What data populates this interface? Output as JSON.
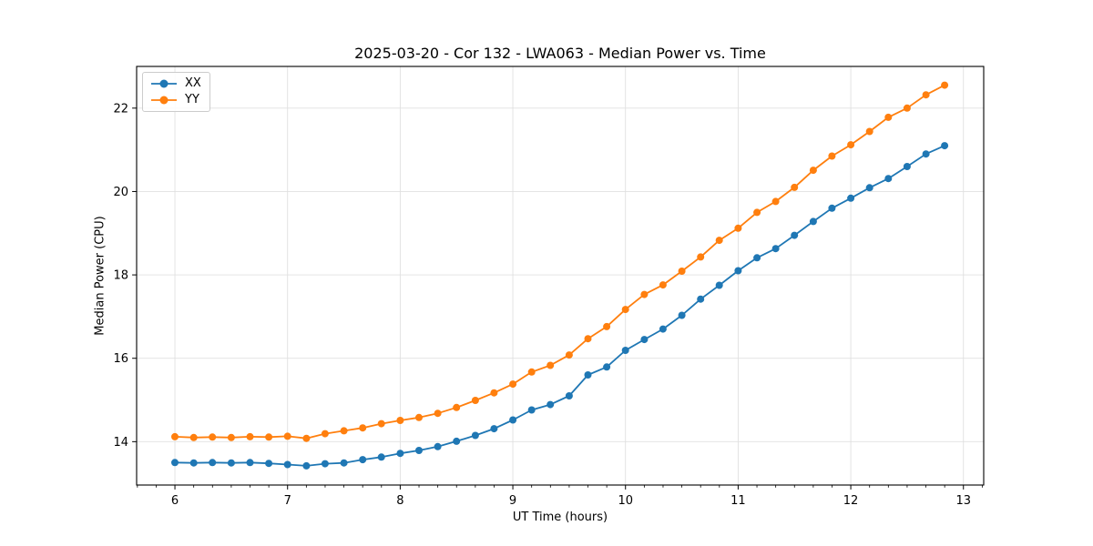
{
  "chart_data": {
    "type": "line",
    "title": "2025-03-20 - Cor 132 - LWA063 - Median Power vs. Time",
    "xlabel": "UT Time (hours)",
    "ylabel": "Median Power (CPU)",
    "xlim": [
      5.66,
      13.18
    ],
    "ylim": [
      12.96,
      23.0
    ],
    "xticks": [
      6,
      7,
      8,
      9,
      10,
      11,
      12,
      13
    ],
    "yticks": [
      14,
      16,
      18,
      20,
      22
    ],
    "x_minor_tick_step": 0.16667,
    "grid": true,
    "grid_color": "#e0e0e0",
    "legend_position": "upper left",
    "marker": "circle",
    "background": "#ffffff",
    "x": [
      6.0,
      6.167,
      6.333,
      6.5,
      6.667,
      6.833,
      7.0,
      7.167,
      7.333,
      7.5,
      7.667,
      7.833,
      8.0,
      8.167,
      8.333,
      8.5,
      8.667,
      8.833,
      9.0,
      9.167,
      9.333,
      9.5,
      9.667,
      9.833,
      10.0,
      10.167,
      10.333,
      10.5,
      10.667,
      10.833,
      11.0,
      11.167,
      11.333,
      11.5,
      11.667,
      11.833,
      12.0,
      12.167,
      12.333,
      12.5,
      12.667,
      12.833
    ],
    "series": [
      {
        "name": "XX",
        "color": "#1f77b4",
        "values": [
          13.5,
          13.49,
          13.5,
          13.49,
          13.5,
          13.48,
          13.45,
          13.42,
          13.47,
          13.49,
          13.57,
          13.63,
          13.72,
          13.79,
          13.88,
          14.01,
          14.15,
          14.31,
          14.52,
          14.76,
          14.89,
          15.1,
          15.6,
          15.79,
          16.19,
          16.45,
          16.7,
          17.03,
          17.42,
          17.75,
          18.1,
          18.41,
          18.63,
          18.95,
          19.28,
          19.6,
          19.84,
          20.09,
          20.31,
          20.6,
          20.9,
          21.1
        ]
      },
      {
        "name": "YY",
        "color": "#ff7f0e",
        "values": [
          14.12,
          14.1,
          14.11,
          14.1,
          14.12,
          14.11,
          14.13,
          14.08,
          14.19,
          14.26,
          14.33,
          14.43,
          14.51,
          14.58,
          14.68,
          14.82,
          14.99,
          15.17,
          15.38,
          15.67,
          15.83,
          16.08,
          16.47,
          16.76,
          17.17,
          17.53,
          17.76,
          18.09,
          18.43,
          18.83,
          19.12,
          19.5,
          19.76,
          20.1,
          20.51,
          20.85,
          21.12,
          21.44,
          21.78,
          22.0,
          22.32,
          22.55
        ]
      }
    ]
  }
}
